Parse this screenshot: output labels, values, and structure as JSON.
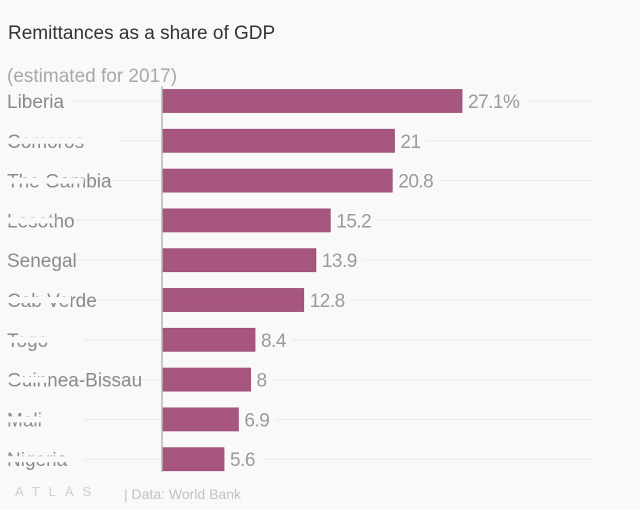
{
  "chart_data": {
    "type": "bar",
    "orientation": "horizontal",
    "title": "Remittances as a share of GDP",
    "subtitle": "(estimated for 2017)",
    "categories": [
      "Liberia",
      "Comoros",
      "The Gambia",
      "Lesotho",
      "Senegal",
      "Cab Verde",
      "Togo",
      "Guinnea-Bissau",
      "Mali",
      "Nigeria"
    ],
    "values": [
      27.1,
      21,
      20.8,
      15.2,
      13.9,
      12.8,
      8.4,
      8,
      6.9,
      5.6
    ],
    "value_labels": [
      "27.1%",
      "21",
      "20.8",
      "15.2",
      "13.9",
      "12.8",
      "8.4",
      "8",
      "6.9",
      "5.6"
    ],
    "unit": "%",
    "xlim": [
      0,
      27.1
    ],
    "grid": true,
    "bar_color": "#a6567f",
    "xlabel": "",
    "ylabel": ""
  },
  "footer": {
    "logo": "ATLAS",
    "source": "| Data: World Bank"
  }
}
